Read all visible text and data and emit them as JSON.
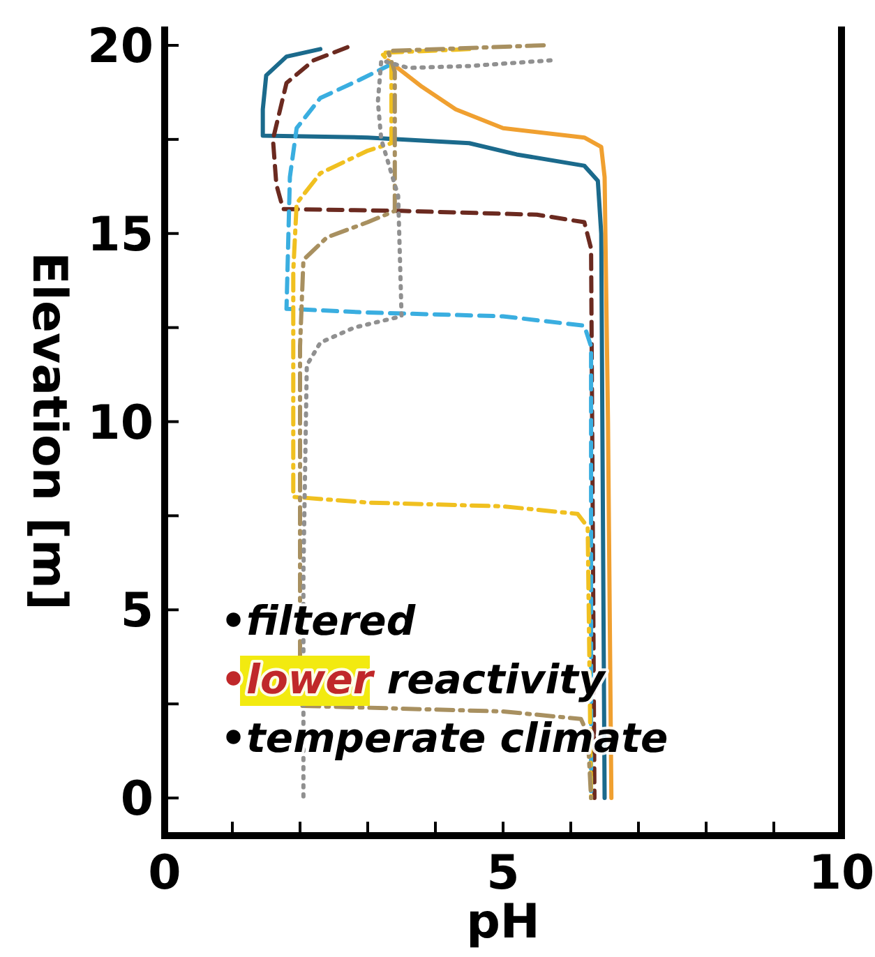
{
  "chart_data": {
    "type": "line",
    "xlabel": "pH",
    "ylabel": "Elevation [m]",
    "xlim": [
      0,
      10
    ],
    "ylim": [
      -1,
      20.5
    ],
    "xticks": [
      0,
      {
        "value": 1,
        "label": null
      },
      {
        "value": 2,
        "label": null
      },
      {
        "value": 3,
        "label": null
      },
      {
        "value": 4,
        "label": null
      },
      5,
      {
        "value": 6,
        "label": null
      },
      {
        "value": 7,
        "label": null
      },
      {
        "value": 8,
        "label": null
      },
      {
        "value": 9,
        "label": null
      },
      10
    ],
    "yticks": [
      0,
      {
        "value": 2.5,
        "label": null
      },
      5,
      {
        "value": 7.5,
        "label": null
      },
      10,
      {
        "value": 12.5,
        "label": null
      },
      15,
      {
        "value": 17.5,
        "label": null
      },
      20
    ],
    "grid": false,
    "series": [
      {
        "color": "#1b6a8c",
        "line_style": "solid",
        "x": [
          2.3,
          1.8,
          1.5,
          1.45,
          1.45,
          3,
          4.5,
          5.2,
          6.2,
          6.4,
          6.45,
          6.5
        ],
        "values": [
          19.9,
          19.7,
          19.2,
          18.3,
          17.6,
          17.55,
          17.4,
          17.1,
          16.8,
          16.4,
          15,
          0
        ]
      },
      {
        "color": "#f0a030",
        "line_style": "solid",
        "x": [
          3.3,
          3.8,
          4.3,
          5,
          6.2,
          6.45,
          6.5,
          6.55,
          6.6
        ],
        "values": [
          19.6,
          18.9,
          18.3,
          17.8,
          17.55,
          17.3,
          16.5,
          10,
          0
        ]
      },
      {
        "color": "#6b2a20",
        "line_style": "dashed",
        "x": [
          2.7,
          2.2,
          1.8,
          1.6,
          1.65,
          1.75,
          3.5,
          5.5,
          6.2,
          6.3,
          6.35
        ],
        "values": [
          19.95,
          19.6,
          19,
          17.5,
          16.3,
          15.65,
          15.6,
          15.5,
          15.3,
          14.6,
          0
        ]
      },
      {
        "color": "#3aaee0",
        "line_style": "dashed",
        "x": [
          3.35,
          2.9,
          2.3,
          1.95,
          1.85,
          1.8,
          3,
          5,
          6.2,
          6.3,
          6.3
        ],
        "values": [
          19.5,
          19.1,
          18.6,
          17.8,
          16.5,
          13,
          12.9,
          12.8,
          12.55,
          12,
          0
        ]
      },
      {
        "color": "#f0c020",
        "line_style": "dashdot",
        "x": [
          4.5,
          3.2,
          3.35,
          3.35,
          3,
          2.3,
          1.95,
          1.9,
          1.9,
          3,
          5,
          6.1,
          6.25,
          6.3
        ],
        "values": [
          19.9,
          19.8,
          19.5,
          17.4,
          17.2,
          16.6,
          15.8,
          14,
          8,
          7.85,
          7.75,
          7.55,
          7.2,
          0
        ]
      },
      {
        "color": "#a89060",
        "line_style": "dashdot",
        "x": [
          5.6,
          3.3,
          3.4,
          3.4,
          3,
          2.4,
          2.05,
          2,
          2,
          3,
          5,
          6.15,
          6.25,
          6.3
        ],
        "values": [
          20,
          19.85,
          19.3,
          15.6,
          15.3,
          14.9,
          14.3,
          12,
          2.45,
          2.4,
          2.3,
          2.1,
          1.7,
          0
        ]
      },
      {
        "color": "#909090",
        "line_style": "dotted",
        "x": [
          5.7,
          4.5,
          3.6,
          3.2,
          3.15,
          3.2,
          3.45,
          3.5,
          2.8,
          2.3,
          2.1,
          2.05,
          2.05
        ],
        "values": [
          19.6,
          19.45,
          19.4,
          19.6,
          18.5,
          17.5,
          16,
          12.8,
          12.5,
          12.1,
          11.5,
          6,
          0
        ]
      }
    ],
    "annotations": [
      "•filtered",
      "•lower reactivity",
      "•temperate climate"
    ]
  }
}
